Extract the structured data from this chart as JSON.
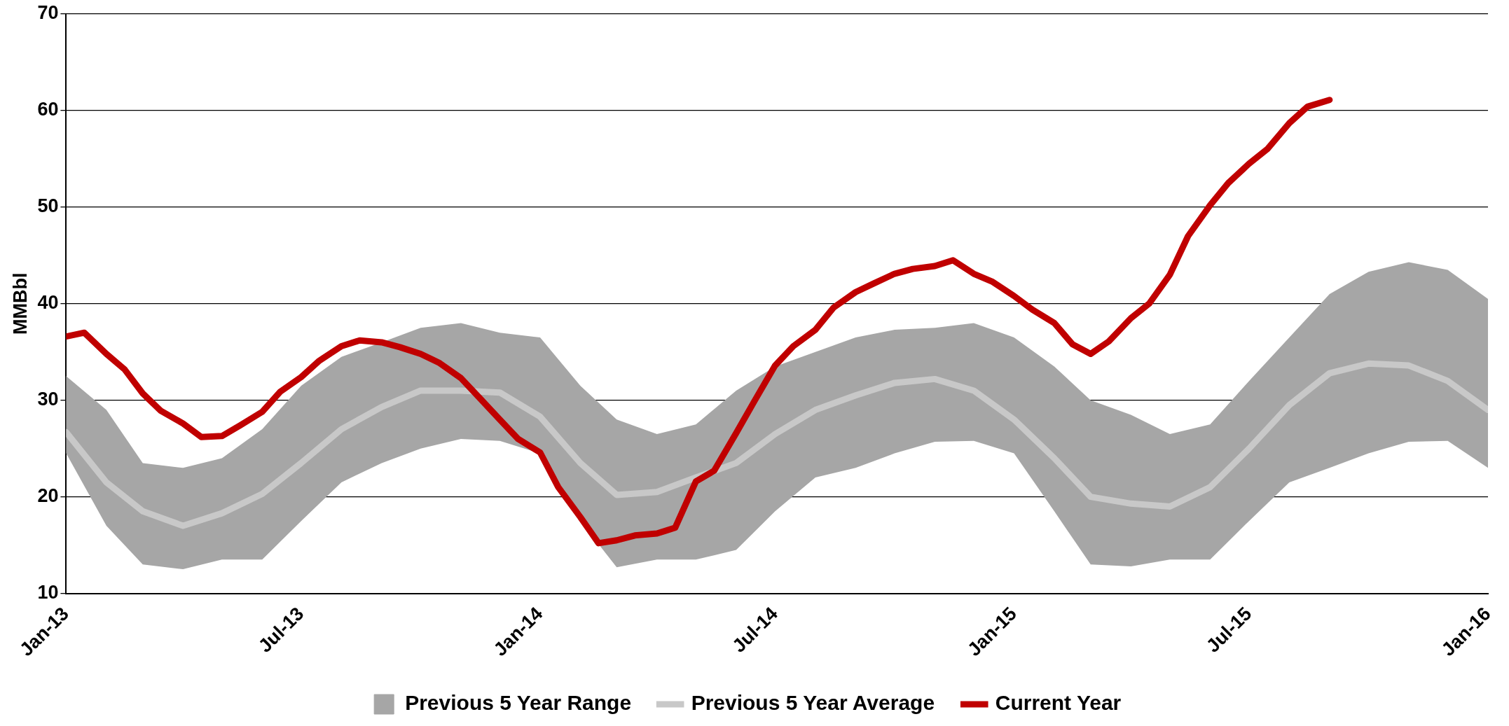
{
  "chart_data": {
    "type": "line",
    "ylabel": "MMBbl",
    "xlim": [
      "2013-01",
      "2016-01"
    ],
    "xticks": [
      {
        "value": "2013-01",
        "label": "Jan-13"
      },
      {
        "value": "2013-07",
        "label": "Jul-13"
      },
      {
        "value": "2014-01",
        "label": "Jan-14"
      },
      {
        "value": "2014-07",
        "label": "Jul-14"
      },
      {
        "value": "2015-01",
        "label": "Jan-15"
      },
      {
        "value": "2015-07",
        "label": "Jul-15"
      },
      {
        "value": "2016-01",
        "label": "Jan-16"
      }
    ],
    "ylim": [
      10,
      70
    ],
    "yticks": [
      10,
      20,
      30,
      40,
      50,
      60,
      70
    ],
    "grid": "y",
    "legend": "bottom",
    "marker": "none",
    "line_style": "solid",
    "series": [
      {
        "name": "Previous 5 Year Range",
        "type": "area",
        "color": "#a6a6a6"
      },
      {
        "name": "Previous 5 Year Average",
        "type": "line",
        "color": "#c8c8c8",
        "x": [
          "2013-01",
          "2013-02",
          "2013-03",
          "2013-04",
          "2013-05",
          "2013-06",
          "2013-07",
          "2013-08",
          "2013-09",
          "2013-10",
          "2013-11",
          "2013-12",
          "2014-01",
          "2014-02",
          "2014-03",
          "2014-04",
          "2014-05",
          "2014-06",
          "2014-07",
          "2014-08",
          "2014-09",
          "2014-10",
          "2014-11",
          "2014-12",
          "2015-01",
          "2015-02",
          "2015-03",
          "2015-04",
          "2015-05",
          "2015-06",
          "2015-07",
          "2015-08",
          "2015-09",
          "2015-10",
          "2015-11",
          "2015-12",
          "2016-01"
        ],
        "values": [
          26.7,
          21.5,
          18.5,
          17.0,
          18.3,
          20.3,
          23.5,
          27.0,
          29.3,
          31.0,
          31.0,
          30.8,
          28.3,
          23.5,
          20.2,
          20.5,
          22.0,
          23.5,
          26.5,
          29.0,
          30.5,
          31.8,
          32.2,
          31.0,
          28.0,
          24.0,
          20.0,
          19.3,
          19.0,
          21.0,
          25.0,
          29.5,
          32.8,
          33.8,
          33.6,
          32.0,
          29.0
        ],
        "lower": [
          24.5,
          17.0,
          13.0,
          12.5,
          13.5,
          13.5,
          17.5,
          21.5,
          23.5,
          25.0,
          26.0,
          25.8,
          24.5,
          17.5,
          12.7,
          13.5,
          13.5,
          14.5,
          18.5,
          22.0,
          23.0,
          24.5,
          25.7,
          25.8,
          24.5,
          18.5,
          13.0,
          12.8,
          13.5,
          13.5,
          17.5,
          21.5,
          23.0,
          24.5,
          25.7,
          25.8,
          23.0
        ],
        "upper": [
          32.5,
          29.0,
          23.5,
          23.0,
          24.0,
          27.0,
          31.5,
          34.5,
          36.0,
          37.5,
          38.0,
          37.0,
          36.5,
          31.5,
          28.0,
          26.5,
          27.5,
          31.0,
          33.5,
          35.0,
          36.5,
          37.3,
          37.5,
          38.0,
          36.5,
          33.5,
          30.0,
          28.5,
          26.5,
          27.5,
          32.0,
          36.5,
          41.0,
          43.3,
          44.3,
          43.5,
          40.5
        ]
      },
      {
        "name": "Current Year",
        "type": "line",
        "color": "#c00000",
        "x": [
          "2013-01-01",
          "2013-01-15",
          "2013-02-01",
          "2013-02-15",
          "2013-03-01",
          "2013-03-15",
          "2013-04-01",
          "2013-04-15",
          "2013-05-01",
          "2013-05-15",
          "2013-06-01",
          "2013-06-15",
          "2013-07-01",
          "2013-07-15",
          "2013-08-01",
          "2013-08-15",
          "2013-09-01",
          "2013-09-15",
          "2013-10-01",
          "2013-10-15",
          "2013-11-01",
          "2013-11-15",
          "2013-12-01",
          "2013-12-15",
          "2014-01-01",
          "2014-01-15",
          "2014-02-01",
          "2014-02-15",
          "2014-03-01",
          "2014-03-15",
          "2014-04-01",
          "2014-04-15",
          "2014-05-01",
          "2014-05-15",
          "2014-06-01",
          "2014-06-15",
          "2014-07-01",
          "2014-07-15",
          "2014-08-01",
          "2014-08-15",
          "2014-09-01",
          "2014-09-15",
          "2014-10-01",
          "2014-10-15",
          "2014-11-01",
          "2014-11-15",
          "2014-12-01",
          "2014-12-15",
          "2015-01-01",
          "2015-01-15",
          "2015-02-01",
          "2015-02-15",
          "2015-03-01",
          "2015-03-15",
          "2015-04-01",
          "2015-04-15",
          "2015-05-01",
          "2015-05-15",
          "2015-06-01",
          "2015-06-15",
          "2015-07-01",
          "2015-07-15",
          "2015-08-01",
          "2015-08-15",
          "2015-09-01"
        ],
        "values": [
          36.6,
          37.0,
          34.8,
          33.2,
          30.7,
          28.9,
          27.6,
          26.2,
          26.3,
          27.4,
          28.8,
          30.9,
          32.4,
          34.1,
          35.6,
          36.2,
          36.0,
          35.5,
          34.8,
          33.9,
          32.3,
          30.3,
          28.0,
          26.0,
          24.6,
          21.0,
          17.9,
          15.2,
          15.5,
          16.0,
          16.2,
          16.8,
          21.6,
          22.7,
          26.6,
          29.9,
          33.6,
          35.6,
          37.3,
          39.6,
          41.2,
          42.1,
          43.1,
          43.6,
          43.9,
          44.5,
          43.1,
          42.3,
          40.8,
          39.4,
          38.0,
          35.8,
          34.8,
          36.1,
          38.5,
          40.0,
          43.0,
          47.0,
          50.2,
          52.5,
          54.5,
          56.0,
          58.7,
          60.4,
          61.1
        ]
      }
    ]
  }
}
